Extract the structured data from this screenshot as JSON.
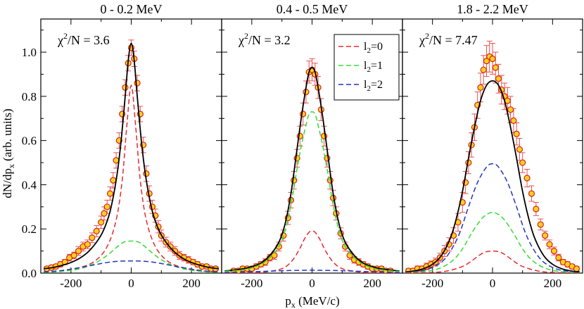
{
  "chart_data": {
    "type": "line",
    "xlabel": "p_x (MeV/c)",
    "ylabel": "dN/dp_x (arb. units)",
    "xlim": [
      -300,
      300
    ],
    "ylim": [
      0,
      1.15
    ],
    "x_ticks": [
      -200,
      0,
      200
    ],
    "y_ticks": [
      0.0,
      0.2,
      0.4,
      0.6,
      0.8,
      1.0
    ],
    "x_tick_labels": [
      "-200",
      "0",
      "200"
    ],
    "y_tick_labels": [
      "0.0",
      "0.2",
      "0.4",
      "0.6",
      "0.8",
      "1.0"
    ],
    "legend": {
      "placement": "top-right of middle panel",
      "entries": [
        {
          "label": "l2=0",
          "sub": "2",
          "color": "#e8282e",
          "style": "dashed"
        },
        {
          "label": "l2=1",
          "sub": "2",
          "color": "#33dd33",
          "style": "dashed"
        },
        {
          "label": "l2=2",
          "sub": "2",
          "color": "#2233bb",
          "style": "dashed"
        }
      ]
    },
    "colors": {
      "total": "#000000",
      "l2_0": "#e8282e",
      "l2_1": "#33dd33",
      "l2_2": "#2233bb",
      "marker_fill": "#ffd21a",
      "marker_edge": "#d62020",
      "error_bar": "#e85050"
    },
    "panels": [
      {
        "title": "0 - 0.2 MeV",
        "chi_label": "χ2/N = 3.6",
        "chi_main": "χ",
        "chi_sup": "2",
        "chi_rest": "/N = 3.6",
        "series": [
          {
            "name": "total",
            "x": [
              -290,
              -260,
              -230,
              -200,
              -170,
              -140,
              -110,
              -90,
              -70,
              -50,
              -35,
              -20,
              -10,
              0,
              10,
              20,
              35,
              50,
              70,
              90,
              110,
              140,
              170,
              200,
              230,
              260,
              290
            ],
            "values": [
              0.02,
              0.025,
              0.035,
              0.048,
              0.068,
              0.1,
              0.15,
              0.2,
              0.28,
              0.42,
              0.58,
              0.8,
              0.96,
              1.04,
              0.96,
              0.8,
              0.58,
              0.42,
              0.28,
              0.2,
              0.15,
              0.1,
              0.068,
              0.048,
              0.035,
              0.025,
              0.02
            ]
          },
          {
            "name": "l2=0",
            "x": [
              -290,
              -230,
              -170,
              -120,
              -80,
              -50,
              -30,
              -15,
              0,
              15,
              30,
              50,
              80,
              120,
              170,
              230,
              290
            ],
            "values": [
              0.005,
              0.01,
              0.025,
              0.055,
              0.12,
              0.24,
              0.42,
              0.66,
              0.85,
              0.66,
              0.42,
              0.24,
              0.12,
              0.055,
              0.025,
              0.01,
              0.005
            ]
          },
          {
            "name": "l2=1",
            "x": [
              -290,
              -230,
              -170,
              -120,
              -80,
              -50,
              -25,
              0,
              25,
              50,
              80,
              120,
              170,
              230,
              290
            ],
            "values": [
              0.003,
              0.008,
              0.02,
              0.045,
              0.08,
              0.115,
              0.14,
              0.145,
              0.14,
              0.115,
              0.08,
              0.045,
              0.02,
              0.008,
              0.003
            ]
          },
          {
            "name": "l2=2",
            "x": [
              -290,
              -230,
              -170,
              -120,
              -80,
              -40,
              0,
              40,
              80,
              120,
              170,
              230,
              290
            ],
            "values": [
              0.005,
              0.012,
              0.025,
              0.038,
              0.048,
              0.054,
              0.055,
              0.054,
              0.048,
              0.038,
              0.025,
              0.012,
              0.005
            ]
          }
        ],
        "data": {
          "x": [
            -280,
            -265,
            -250,
            -235,
            -220,
            -205,
            -190,
            -175,
            -160,
            -145,
            -130,
            -115,
            -100,
            -90,
            -80,
            -70,
            -60,
            -50,
            -40,
            -30,
            -20,
            -10,
            0,
            10,
            20,
            30,
            40,
            50,
            60,
            70,
            80,
            90,
            100,
            115,
            130,
            145,
            160,
            175,
            190,
            205,
            220,
            235,
            250,
            265,
            280
          ],
          "y": [
            0.02,
            0.025,
            0.03,
            0.04,
            0.05,
            0.07,
            0.08,
            0.1,
            0.12,
            0.13,
            0.16,
            0.19,
            0.23,
            0.27,
            0.3,
            0.36,
            0.42,
            0.51,
            0.6,
            0.72,
            0.84,
            0.95,
            1.02,
            0.97,
            0.86,
            0.72,
            0.58,
            0.45,
            0.36,
            0.3,
            0.26,
            0.21,
            0.17,
            0.14,
            0.12,
            0.1,
            0.08,
            0.07,
            0.06,
            0.05,
            0.04,
            0.03,
            0.03,
            0.02,
            0.02
          ],
          "err": [
            0.01,
            0.01,
            0.01,
            0.012,
            0.012,
            0.015,
            0.015,
            0.02,
            0.02,
            0.02,
            0.022,
            0.025,
            0.028,
            0.03,
            0.03,
            0.03,
            0.035,
            0.035,
            0.035,
            0.035,
            0.035,
            0.035,
            0.035,
            0.035,
            0.035,
            0.035,
            0.035,
            0.035,
            0.035,
            0.03,
            0.03,
            0.028,
            0.025,
            0.022,
            0.02,
            0.02,
            0.018,
            0.015,
            0.015,
            0.012,
            0.012,
            0.01,
            0.01,
            0.01,
            0.01
          ]
        }
      },
      {
        "title": "0.4 - 0.5 MeV",
        "chi_label": "χ2/N = 3.2",
        "chi_main": "χ",
        "chi_sup": "2",
        "chi_rest": "/N = 3.2",
        "series": [
          {
            "name": "total",
            "x": [
              -290,
              -250,
              -210,
              -170,
              -140,
              -110,
              -90,
              -70,
              -50,
              -35,
              -20,
              -10,
              0,
              10,
              20,
              35,
              50,
              70,
              90,
              110,
              140,
              170,
              210,
              250,
              290
            ],
            "values": [
              0.01,
              0.015,
              0.025,
              0.045,
              0.08,
              0.14,
              0.22,
              0.36,
              0.56,
              0.71,
              0.84,
              0.91,
              0.93,
              0.91,
              0.84,
              0.71,
              0.56,
              0.36,
              0.22,
              0.14,
              0.08,
              0.045,
              0.025,
              0.015,
              0.01
            ]
          },
          {
            "name": "l2=1",
            "x": [
              -290,
              -250,
              -210,
              -170,
              -140,
              -110,
              -90,
              -70,
              -50,
              -35,
              -20,
              -10,
              0,
              10,
              20,
              35,
              50,
              70,
              90,
              110,
              140,
              170,
              210,
              250,
              290
            ],
            "values": [
              0.008,
              0.012,
              0.02,
              0.04,
              0.07,
              0.12,
              0.19,
              0.31,
              0.47,
              0.58,
              0.67,
              0.72,
              0.73,
              0.72,
              0.67,
              0.58,
              0.47,
              0.31,
              0.19,
              0.12,
              0.07,
              0.04,
              0.02,
              0.012,
              0.008
            ]
          },
          {
            "name": "l2=0",
            "x": [
              -290,
              -200,
              -150,
              -100,
              -70,
              -45,
              -25,
              -10,
              0,
              10,
              25,
              45,
              70,
              100,
              150,
              200,
              290
            ],
            "values": [
              0.0,
              0.002,
              0.006,
              0.02,
              0.05,
              0.1,
              0.155,
              0.185,
              0.19,
              0.185,
              0.155,
              0.1,
              0.05,
              0.02,
              0.006,
              0.002,
              0.0
            ]
          },
          {
            "name": "l2=2",
            "x": [
              -290,
              -200,
              -120,
              -60,
              0,
              60,
              120,
              200,
              290
            ],
            "values": [
              0.003,
              0.006,
              0.01,
              0.012,
              0.013,
              0.012,
              0.01,
              0.006,
              0.003
            ]
          }
        ],
        "data": {
          "x": [
            -260,
            -245,
            -230,
            -215,
            -200,
            -185,
            -170,
            -155,
            -140,
            -125,
            -110,
            -95,
            -80,
            -70,
            -60,
            -50,
            -40,
            -30,
            -20,
            -10,
            0,
            10,
            20,
            30,
            40,
            50,
            60,
            70,
            80,
            95,
            110,
            125,
            140,
            155,
            170,
            185,
            200,
            215,
            230,
            245,
            260
          ],
          "y": [
            0.01,
            0.01,
            0.02,
            0.02,
            0.02,
            0.03,
            0.04,
            0.05,
            0.07,
            0.08,
            0.12,
            0.17,
            0.25,
            0.33,
            0.42,
            0.52,
            0.62,
            0.72,
            0.82,
            0.91,
            0.92,
            0.9,
            0.84,
            0.74,
            0.62,
            0.52,
            0.42,
            0.34,
            0.27,
            0.18,
            0.12,
            0.08,
            0.06,
            0.05,
            0.04,
            0.03,
            0.02,
            0.02,
            0.02,
            0.01,
            0.01
          ],
          "err": [
            0.01,
            0.01,
            0.01,
            0.01,
            0.01,
            0.012,
            0.012,
            0.015,
            0.015,
            0.018,
            0.02,
            0.025,
            0.03,
            0.035,
            0.04,
            0.04,
            0.045,
            0.05,
            0.05,
            0.05,
            0.05,
            0.05,
            0.05,
            0.05,
            0.045,
            0.04,
            0.04,
            0.035,
            0.03,
            0.025,
            0.02,
            0.018,
            0.015,
            0.015,
            0.012,
            0.012,
            0.01,
            0.01,
            0.01,
            0.01,
            0.01
          ]
        }
      },
      {
        "title": "1.8 - 2.2 MeV",
        "chi_label": "χ2/N = 7.47",
        "chi_main": "χ",
        "chi_sup": "2",
        "chi_rest": "/N = 7.47",
        "series": [
          {
            "name": "total",
            "x": [
              -290,
              -260,
              -230,
              -200,
              -170,
              -140,
              -120,
              -100,
              -80,
              -60,
              -40,
              -20,
              0,
              20,
              40,
              60,
              80,
              100,
              120,
              140,
              170,
              200,
              230,
              260,
              290
            ],
            "values": [
              0.005,
              0.01,
              0.02,
              0.04,
              0.08,
              0.16,
              0.25,
              0.37,
              0.52,
              0.66,
              0.78,
              0.85,
              0.87,
              0.85,
              0.78,
              0.66,
              0.52,
              0.37,
              0.25,
              0.16,
              0.08,
              0.04,
              0.02,
              0.01,
              0.005
            ]
          },
          {
            "name": "l2=2",
            "x": [
              -290,
              -250,
              -210,
              -170,
              -140,
              -110,
              -80,
              -50,
              -20,
              0,
              20,
              50,
              80,
              110,
              140,
              170,
              210,
              250,
              290
            ],
            "values": [
              0.003,
              0.008,
              0.02,
              0.05,
              0.1,
              0.18,
              0.3,
              0.41,
              0.48,
              0.495,
              0.48,
              0.41,
              0.3,
              0.18,
              0.1,
              0.05,
              0.02,
              0.008,
              0.003
            ]
          },
          {
            "name": "l2=1",
            "x": [
              -290,
              -250,
              -210,
              -170,
              -130,
              -100,
              -70,
              -40,
              -20,
              0,
              20,
              40,
              70,
              100,
              130,
              170,
              210,
              250,
              290
            ],
            "values": [
              0.0,
              0.004,
              0.01,
              0.025,
              0.06,
              0.11,
              0.18,
              0.24,
              0.265,
              0.275,
              0.265,
              0.24,
              0.18,
              0.11,
              0.06,
              0.025,
              0.01,
              0.004,
              0.0
            ]
          },
          {
            "name": "l2=0",
            "x": [
              -290,
              -200,
              -150,
              -100,
              -70,
              -45,
              -25,
              0,
              25,
              45,
              70,
              100,
              150,
              200,
              290
            ],
            "values": [
              0.0,
              0.003,
              0.01,
              0.03,
              0.055,
              0.08,
              0.095,
              0.1,
              0.095,
              0.08,
              0.055,
              0.03,
              0.01,
              0.003,
              0.0
            ]
          }
        ],
        "data": {
          "x": [
            -280,
            -265,
            -250,
            -235,
            -220,
            -205,
            -190,
            -175,
            -160,
            -145,
            -130,
            -115,
            -100,
            -90,
            -80,
            -70,
            -60,
            -50,
            -40,
            -30,
            -20,
            -10,
            0,
            10,
            20,
            30,
            40,
            50,
            60,
            70,
            80,
            90,
            100,
            115,
            130,
            145,
            160,
            175,
            190,
            205,
            220,
            235,
            250,
            265,
            280
          ],
          "y": [
            0.01,
            0.01,
            0.02,
            0.02,
            0.03,
            0.04,
            0.05,
            0.07,
            0.1,
            0.13,
            0.17,
            0.23,
            0.32,
            0.41,
            0.5,
            0.58,
            0.66,
            0.76,
            0.84,
            0.92,
            0.96,
            0.98,
            0.97,
            0.93,
            0.88,
            0.83,
            0.8,
            0.78,
            0.74,
            0.69,
            0.63,
            0.56,
            0.5,
            0.43,
            0.36,
            0.29,
            0.22,
            0.17,
            0.13,
            0.1,
            0.07,
            0.05,
            0.04,
            0.03,
            0.02
          ],
          "err": [
            0.01,
            0.01,
            0.012,
            0.012,
            0.015,
            0.015,
            0.018,
            0.02,
            0.025,
            0.03,
            0.035,
            0.04,
            0.045,
            0.05,
            0.05,
            0.055,
            0.06,
            0.06,
            0.065,
            0.065,
            0.07,
            0.07,
            0.07,
            0.07,
            0.065,
            0.065,
            0.06,
            0.06,
            0.06,
            0.055,
            0.05,
            0.05,
            0.045,
            0.04,
            0.035,
            0.03,
            0.025,
            0.02,
            0.02,
            0.018,
            0.015,
            0.012,
            0.012,
            0.01,
            0.01
          ]
        }
      }
    ]
  }
}
